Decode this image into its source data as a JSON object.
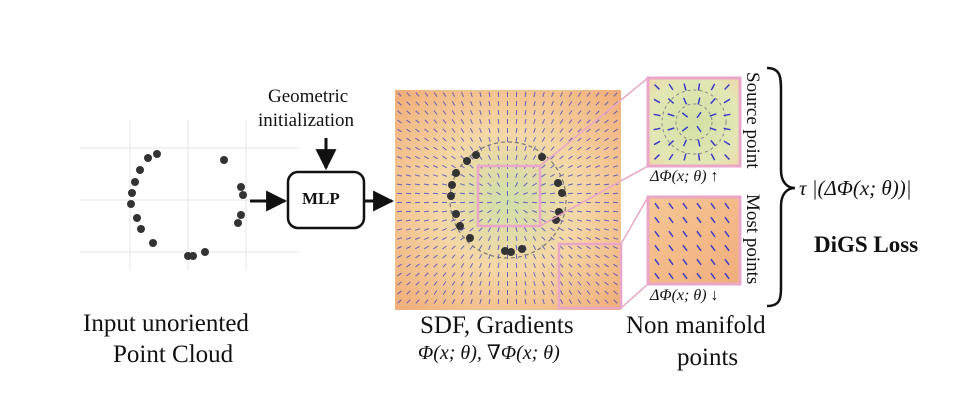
{
  "input": {
    "line1": "Input unoriented",
    "line2": "Point Cloud"
  },
  "geo_init": {
    "line1": "Geometric",
    "line2": "initialization"
  },
  "mlp": {
    "label": "MLP"
  },
  "sdf": {
    "line1": "SDF, Gradients",
    "formula": "Φ(x; θ), ∇Φ(x; θ)"
  },
  "nonmanifold": {
    "line1": "Non manifold",
    "line2": "points"
  },
  "insets": {
    "top_formula": "ΔΦ(x; θ) ↑",
    "bottom_formula": "ΔΦ(x; θ) ↓",
    "top_side_label": "Source point",
    "bottom_side_label": "Most points"
  },
  "loss": {
    "expression": "τ |(ΔΦ(x; θ))|",
    "title": "DiGS Loss"
  },
  "colors": {
    "pink": "#e9a6c7",
    "arrow_tick": "#3a3dc4",
    "sdf_center": "#cfdfa8",
    "sdf_edge": "#f2b27a",
    "dot": "#333333"
  }
}
